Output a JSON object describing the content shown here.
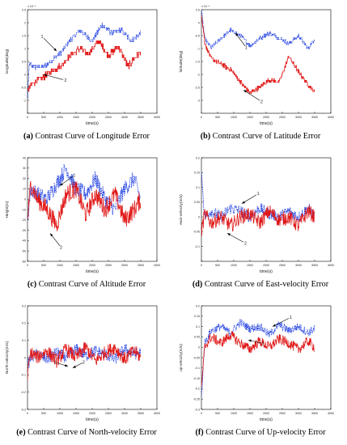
{
  "captions": [
    {
      "letter": "(a)",
      "text": " Contrast Curve of Longitude Error"
    },
    {
      "letter": "(b)",
      "text": " Contrast Curve of Latitude Error"
    },
    {
      "letter": "(c)",
      "text": " Contrast Curve of Altitude Error"
    },
    {
      "letter": "(d)",
      "text": " Contrast Curve of East-velocity Error"
    },
    {
      "letter": "(e)",
      "text": " Contrast Curve of North-velocity Error"
    },
    {
      "letter": "(f)",
      "text": " Contrast Curve of Up-velocity Error"
    }
  ],
  "colors": {
    "series1": "#1f3fe0",
    "series2": "#e01818",
    "arrow": "#000000"
  },
  "chart_data": [
    {
      "type": "line",
      "xlabel": "time(s)",
      "ylabel": "longitude(deg)",
      "exponent": "x 10⁻⁴",
      "xlim": [
        0,
        4000
      ],
      "ylim": [
        -1.5,
        2.5
      ],
      "xticks": [
        0,
        500,
        1000,
        1500,
        2000,
        2500,
        3000,
        3500,
        4000
      ],
      "yticks": [
        -1.5,
        -1,
        -0.5,
        0,
        0.5,
        1,
        1.5,
        2,
        2.5
      ],
      "ytick_labels": [
        "",
        "-1",
        "-0.5",
        "0",
        "0.5",
        "1",
        "1.5",
        "2",
        "2.5"
      ],
      "series": [
        {
          "label": "1",
          "x": [
            0,
            50,
            200,
            500,
            800,
            1000,
            1300,
            1600,
            2000,
            2300,
            2600,
            2900,
            3200,
            3500
          ],
          "values": [
            -0.9,
            0.4,
            0.3,
            0.3,
            0.6,
            0.8,
            1.3,
            1.7,
            1.3,
            1.9,
            1.6,
            1.7,
            1.3,
            1.6
          ],
          "noise": 0.1
        },
        {
          "label": "2",
          "x": [
            0,
            50,
            200,
            500,
            800,
            1000,
            1300,
            1600,
            1900,
            2200,
            2500,
            2800,
            3100,
            3500
          ],
          "values": [
            -0.6,
            -0.5,
            -0.3,
            -0.1,
            0.2,
            0.3,
            0.7,
            1.0,
            0.8,
            1.3,
            0.7,
            1.1,
            0.3,
            0.9
          ],
          "noise": 0.12
        }
      ],
      "annotations": [
        {
          "text": "1",
          "x": 500,
          "y": 1.4,
          "ax": 900,
          "ay": 0.9
        },
        {
          "text": "2",
          "x": 1100,
          "y": -0.2,
          "ax": 500,
          "ay": 0.0
        }
      ]
    },
    {
      "type": "line",
      "xlabel": "time(s)",
      "ylabel": "latitude(deg)",
      "exponent": "x 10⁻⁴",
      "xlim": [
        0,
        4000
      ],
      "ylim": [
        -3.5,
        0.5
      ],
      "xticks": [
        0,
        500,
        1000,
        1500,
        2000,
        2500,
        3000,
        3500,
        4000
      ],
      "yticks": [
        -3,
        -2.5,
        -2,
        -1.5,
        -1,
        -0.5,
        0,
        0.5
      ],
      "ytick_labels": [
        "-3",
        "-2.5",
        "-2",
        "-1.5",
        "-1",
        "-0.5",
        "0",
        "0.5"
      ],
      "series": [
        {
          "label": "1",
          "x": [
            0,
            100,
            300,
            600,
            900,
            1200,
            1500,
            1800,
            2100,
            2400,
            2700,
            3000,
            3300,
            3500
          ],
          "values": [
            0.4,
            -0.6,
            -1.0,
            -0.6,
            -0.3,
            -0.5,
            -0.9,
            -0.6,
            -0.4,
            -0.6,
            -0.8,
            -0.5,
            -1.0,
            -0.6
          ],
          "noise": 0.08
        },
        {
          "label": "2",
          "x": [
            0,
            100,
            300,
            600,
            900,
            1200,
            1500,
            1800,
            2100,
            2400,
            2700,
            3000,
            3300,
            3500
          ],
          "values": [
            0.3,
            -0.8,
            -1.4,
            -1.6,
            -1.8,
            -2.3,
            -2.7,
            -2.5,
            -2.2,
            -2.3,
            -1.3,
            -1.9,
            -2.4,
            -2.7
          ],
          "noise": 0.08
        }
      ],
      "annotations": [
        {
          "text": "1",
          "x": 1350,
          "y": -0.9,
          "ax": 1050,
          "ay": -0.4
        },
        {
          "text": "2",
          "x": 1800,
          "y": -3.0,
          "ax": 1300,
          "ay": -2.6
        }
      ]
    },
    {
      "type": "line",
      "xlabel": "time(s)",
      "ylabel": "Height(m)",
      "xlim": [
        0,
        4000
      ],
      "ylim": [
        -60,
        40
      ],
      "xticks": [
        0,
        500,
        1000,
        1500,
        2000,
        2500,
        3000,
        3500,
        4000
      ],
      "yticks": [
        -60,
        -50,
        -40,
        -30,
        -20,
        -10,
        0,
        10,
        20,
        30,
        40
      ],
      "ytick_labels": [
        "-60",
        "-50",
        "-40",
        "-30",
        "-20",
        "-10",
        "0",
        "10",
        "20",
        "30",
        "40"
      ],
      "series": [
        {
          "label": "1",
          "x": [
            0,
            100,
            300,
            600,
            900,
            1200,
            1500,
            1800,
            2100,
            2400,
            2700,
            3000,
            3300,
            3500
          ],
          "values": [
            -20,
            10,
            5,
            0,
            15,
            30,
            10,
            5,
            20,
            0,
            -10,
            10,
            20,
            0
          ],
          "noise": 8
        },
        {
          "label": "2",
          "x": [
            0,
            100,
            300,
            600,
            900,
            1200,
            1500,
            1800,
            2100,
            2400,
            2700,
            3000,
            3300,
            3500
          ],
          "values": [
            -20,
            15,
            0,
            -10,
            -25,
            5,
            10,
            -15,
            5,
            -10,
            5,
            -20,
            -10,
            0
          ],
          "noise": 9
        }
      ],
      "annotations": [
        {
          "text": "1",
          "x": 1400,
          "y": 22,
          "ax": 1000,
          "ay": 13
        },
        {
          "text": "2",
          "x": 1000,
          "y": -45,
          "ax": 700,
          "ay": -33
        }
      ]
    },
    {
      "type": "line",
      "xlabel": "time(s)",
      "ylabel": "east-velocity(m/s)",
      "xlim": [
        0,
        4000
      ],
      "ylim": [
        -0.15,
        0.2
      ],
      "xticks": [
        0,
        500,
        1000,
        1500,
        2000,
        2500,
        3000,
        3500,
        4000
      ],
      "yticks": [
        -0.15,
        -0.1,
        -0.05,
        0,
        0.05,
        0.1,
        0.15,
        0.2
      ],
      "ytick_labels": [
        "",
        "-0.1",
        "-0.05",
        "0",
        "0.05",
        "0.1",
        "0.15",
        "0.2"
      ],
      "series": [
        {
          "label": "1",
          "x": [
            0,
            100,
            300,
            600,
            900,
            1200,
            1500,
            1800,
            2100,
            2400,
            2700,
            3000,
            3300,
            3500
          ],
          "values": [
            0.15,
            0.0,
            0.02,
            0.0,
            0.03,
            0.02,
            0.0,
            0.03,
            0.01,
            0.0,
            0.02,
            0.0,
            0.03,
            0.0
          ],
          "noise": 0.02
        },
        {
          "label": "2",
          "x": [
            0,
            100,
            300,
            600,
            900,
            1200,
            1500,
            1800,
            2100,
            2400,
            2700,
            3000,
            3300,
            3500
          ],
          "values": [
            -0.05,
            0.01,
            -0.02,
            0.0,
            -0.03,
            0.0,
            0.01,
            -0.02,
            0.02,
            -0.01,
            0.0,
            -0.03,
            0.02,
            0.0
          ],
          "noise": 0.025
        }
      ],
      "annotations": [
        {
          "text": "1",
          "x": 1700,
          "y": 0.075,
          "ax": 1250,
          "ay": 0.045
        },
        {
          "text": "2",
          "x": 1300,
          "y": -0.085,
          "ax": 800,
          "ay": -0.055
        }
      ]
    },
    {
      "type": "line",
      "xlabel": "time(s)",
      "ylabel": "North-velocity(m/s)",
      "xlim": [
        0,
        4000
      ],
      "ylim": [
        -0.3,
        0.3
      ],
      "xticks": [
        0,
        500,
        1000,
        1500,
        2000,
        2500,
        3000,
        3500,
        4000
      ],
      "yticks": [
        -0.3,
        -0.2,
        -0.1,
        0,
        0.1,
        0.2,
        0.3
      ],
      "ytick_labels": [
        "-0.3",
        "-0.2",
        "-0.1",
        "0",
        "0.1",
        "0.2",
        "0.3"
      ],
      "series": [
        {
          "label": "1",
          "x": [
            0,
            100,
            300,
            600,
            900,
            1200,
            1500,
            1800,
            2100,
            2400,
            2700,
            3000,
            3300,
            3500
          ],
          "values": [
            -0.05,
            0.0,
            0.02,
            -0.01,
            0.03,
            0.0,
            0.05,
            0.01,
            0.04,
            0.02,
            -0.01,
            0.05,
            0.02,
            0.03
          ],
          "noise": 0.035
        },
        {
          "label": "2",
          "x": [
            0,
            100,
            300,
            600,
            900,
            1200,
            1500,
            1800,
            2100,
            2400,
            2700,
            3000,
            3300,
            3500
          ],
          "values": [
            -0.1,
            0.03,
            0.0,
            0.04,
            -0.02,
            0.05,
            0.0,
            0.06,
            -0.02,
            0.03,
            0.06,
            -0.01,
            0.04,
            0.0
          ],
          "noise": 0.04
        }
      ],
      "annotations": [
        {
          "text": "1",
          "x": 900,
          "y": -0.03,
          "ax": 1250,
          "ay": -0.05
        },
        {
          "text": "2",
          "x": 1700,
          "y": -0.03,
          "ax": 1400,
          "ay": -0.06
        }
      ]
    },
    {
      "type": "line",
      "xlabel": "time(s)",
      "ylabel": "up-velocity(m/s)",
      "xlim": [
        0,
        4000
      ],
      "ylim": [
        -0.3,
        0.2
      ],
      "xticks": [
        0,
        500,
        1000,
        1500,
        2000,
        2500,
        3000,
        3500,
        4000
      ],
      "yticks": [
        -0.3,
        -0.25,
        -0.2,
        -0.15,
        -0.1,
        -0.05,
        0,
        0.05,
        0.1,
        0.15,
        0.2
      ],
      "ytick_labels": [
        "-0.3",
        "-0.25",
        "-0.2",
        "-0.15",
        "-0.1",
        "-0.05",
        "0",
        "0.05",
        "0.1",
        "0.15",
        "0.2"
      ],
      "series": [
        {
          "label": "1",
          "x": [
            0,
            100,
            300,
            600,
            900,
            1200,
            1500,
            1800,
            2100,
            2400,
            2700,
            3000,
            3300,
            3500
          ],
          "values": [
            -0.25,
            0.02,
            0.08,
            0.1,
            0.07,
            0.12,
            0.09,
            0.1,
            0.06,
            0.11,
            0.08,
            0.1,
            0.07,
            0.09
          ],
          "noise": 0.02
        },
        {
          "label": "2",
          "x": [
            0,
            100,
            300,
            600,
            900,
            1200,
            1500,
            1800,
            2100,
            2400,
            2700,
            3000,
            3300,
            3500
          ],
          "values": [
            -0.2,
            0.0,
            0.05,
            0.02,
            0.06,
            0.02,
            -0.01,
            0.03,
            0.0,
            0.04,
            0.02,
            -0.01,
            0.03,
            0.0
          ],
          "noise": 0.025
        }
      ],
      "annotations": [
        {
          "text": "1",
          "x": 2700,
          "y": 0.14,
          "ax": 2200,
          "ay": 0.1
        },
        {
          "text": "2",
          "x": 1850,
          "y": 0.02,
          "ax": 1450,
          "ay": 0.035
        }
      ]
    }
  ]
}
